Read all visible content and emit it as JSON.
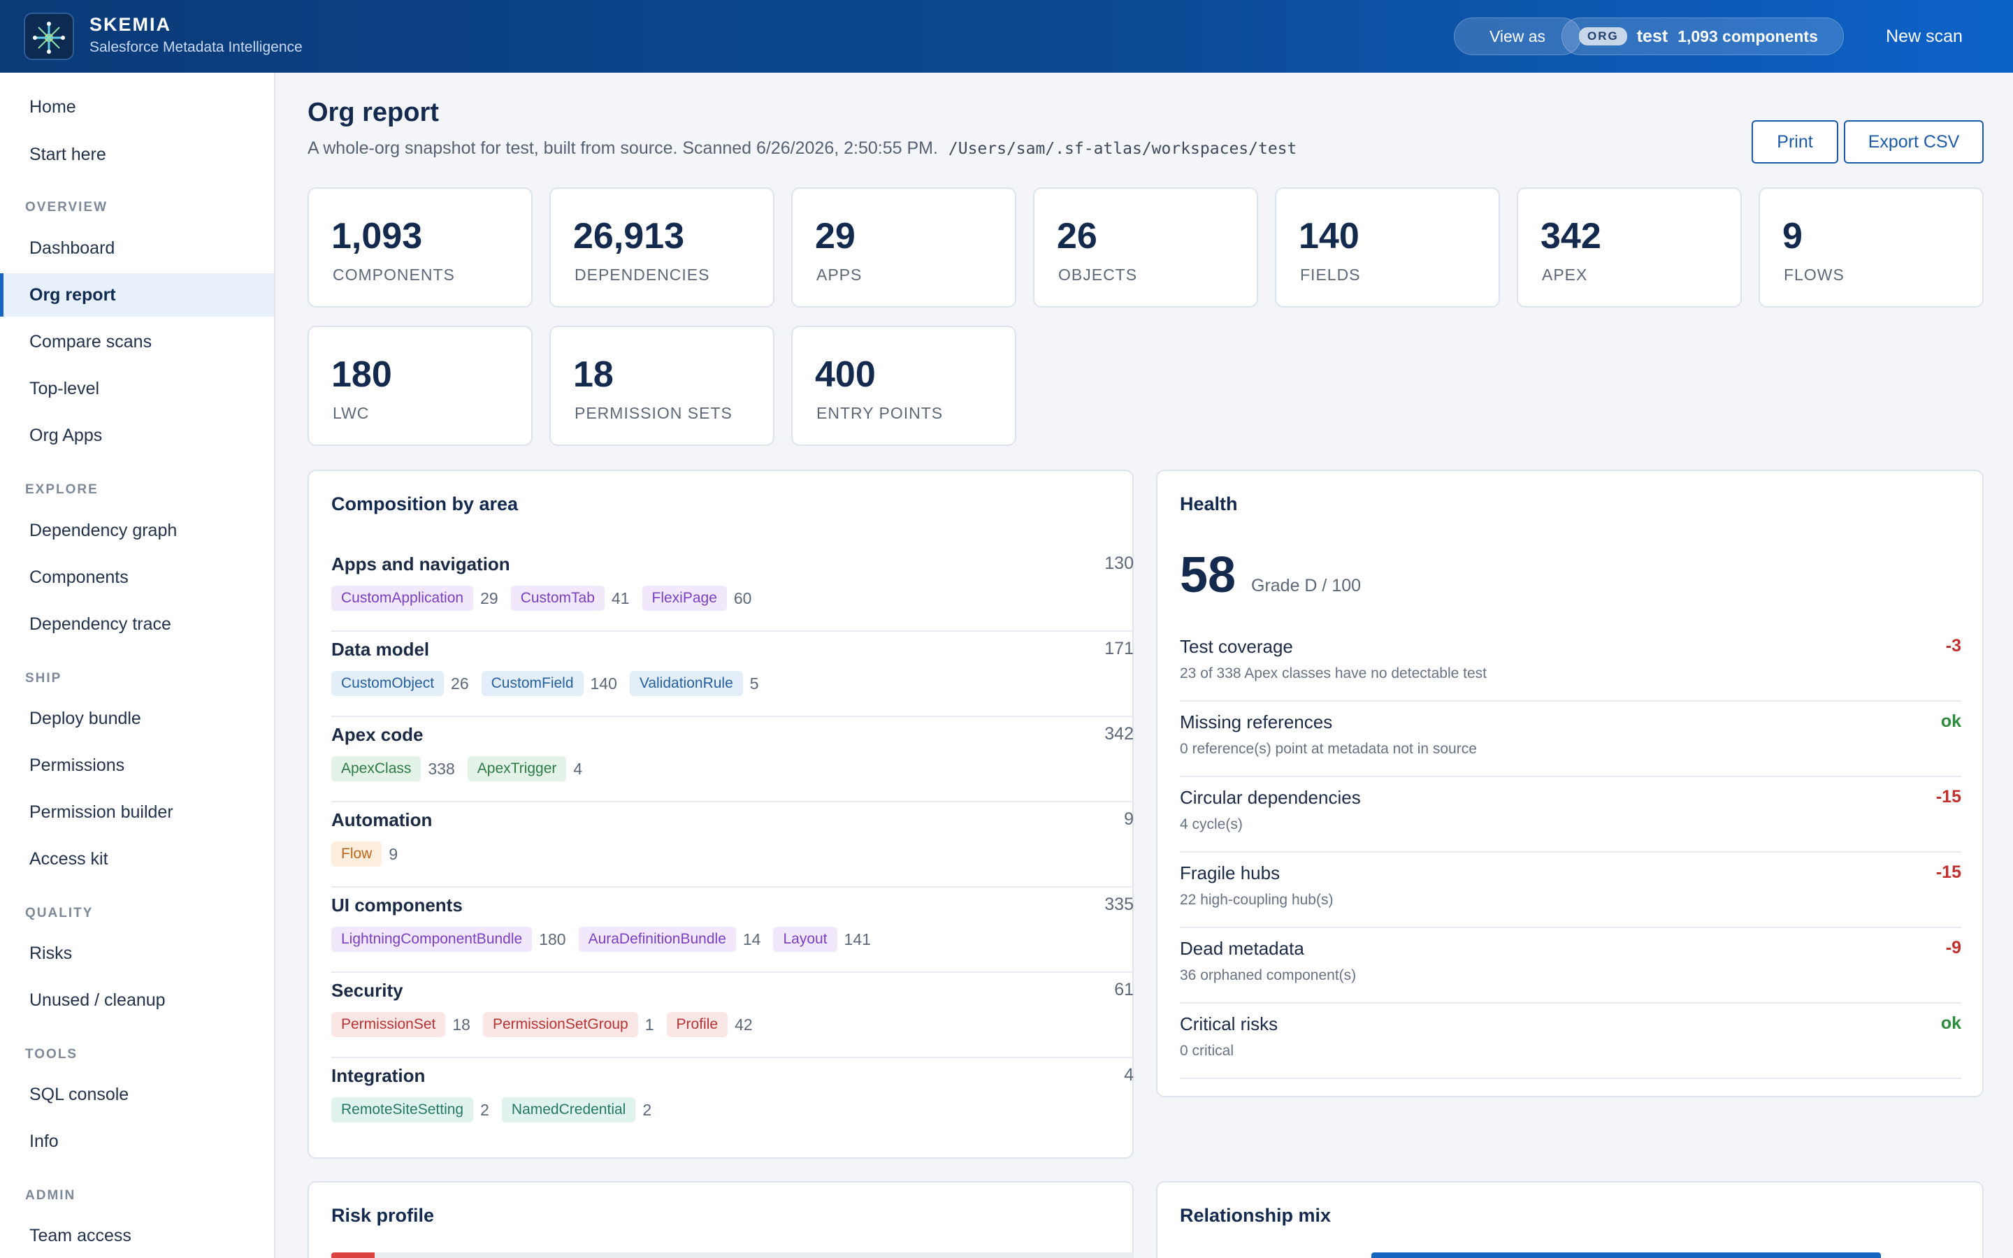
{
  "brand": {
    "name": "SKEMIA",
    "subtitle": "Salesforce Metadata Intelligence"
  },
  "header": {
    "view_as": "View as",
    "org_tag": "ORG",
    "org_name": "test",
    "org_components": "1,093 components",
    "new_scan": "New scan"
  },
  "sidebar": {
    "top": [
      "Home",
      "Start here"
    ],
    "sections": [
      {
        "title": "OVERVIEW",
        "items": [
          "Dashboard",
          "Org report",
          "Compare scans",
          "Top-level",
          "Org Apps"
        ]
      },
      {
        "title": "EXPLORE",
        "items": [
          "Dependency graph",
          "Components",
          "Dependency trace"
        ]
      },
      {
        "title": "SHIP",
        "items": [
          "Deploy bundle",
          "Permissions",
          "Permission builder",
          "Access kit"
        ]
      },
      {
        "title": "QUALITY",
        "items": [
          "Risks",
          "Unused / cleanup"
        ]
      },
      {
        "title": "TOOLS",
        "items": [
          "SQL console",
          "Info"
        ]
      },
      {
        "title": "ADMIN",
        "items": [
          "Team access"
        ]
      }
    ],
    "active": "Org report"
  },
  "page": {
    "title": "Org report",
    "subtitle": "A whole-org snapshot for test, built from source. Scanned 6/26/2026, 2:50:55 PM.",
    "path": "/Users/sam/.sf-atlas/workspaces/test",
    "print": "Print",
    "export": "Export CSV"
  },
  "stats": [
    {
      "value": "1,093",
      "label": "COMPONENTS"
    },
    {
      "value": "26,913",
      "label": "DEPENDENCIES"
    },
    {
      "value": "29",
      "label": "APPS"
    },
    {
      "value": "26",
      "label": "OBJECTS"
    },
    {
      "value": "140",
      "label": "FIELDS"
    },
    {
      "value": "342",
      "label": "APEX"
    },
    {
      "value": "9",
      "label": "FLOWS"
    },
    {
      "value": "180",
      "label": "LWC"
    },
    {
      "value": "18",
      "label": "PERMISSION SETS"
    },
    {
      "value": "400",
      "label": "ENTRY POINTS"
    }
  ],
  "composition": {
    "title": "Composition by area",
    "areas": [
      {
        "name": "Apps and navigation",
        "total": "130",
        "chips": [
          {
            "label": "CustomApplication",
            "count": "29",
            "color": "#7a3fc2"
          },
          {
            "label": "CustomTab",
            "count": "41",
            "color": "#7a3fc2"
          },
          {
            "label": "FlexiPage",
            "count": "60",
            "color": "#7a3fc2"
          }
        ]
      },
      {
        "name": "Data model",
        "total": "171",
        "chips": [
          {
            "label": "CustomObject",
            "count": "26",
            "color": "#24609e"
          },
          {
            "label": "CustomField",
            "count": "140",
            "color": "#24609e"
          },
          {
            "label": "ValidationRule",
            "count": "5",
            "color": "#24609e"
          }
        ]
      },
      {
        "name": "Apex code",
        "total": "342",
        "chips": [
          {
            "label": "ApexClass",
            "count": "338",
            "color": "#2d7a45"
          },
          {
            "label": "ApexTrigger",
            "count": "4",
            "color": "#2d7a45"
          }
        ]
      },
      {
        "name": "Automation",
        "total": "9",
        "chips": [
          {
            "label": "Flow",
            "count": "9",
            "color": "#b9651c"
          }
        ]
      },
      {
        "name": "UI components",
        "total": "335",
        "chips": [
          {
            "label": "LightningComponentBundle",
            "count": "180",
            "color": "#7a3fc2"
          },
          {
            "label": "AuraDefinitionBundle",
            "count": "14",
            "color": "#7a3fc2"
          },
          {
            "label": "Layout",
            "count": "141",
            "color": "#7a3fc2"
          }
        ]
      },
      {
        "name": "Security",
        "total": "61",
        "chips": [
          {
            "label": "PermissionSet",
            "count": "18",
            "color": "#b53434"
          },
          {
            "label": "PermissionSetGroup",
            "count": "1",
            "color": "#b53434"
          },
          {
            "label": "Profile",
            "count": "42",
            "color": "#b53434"
          }
        ]
      },
      {
        "name": "Integration",
        "total": "4",
        "chips": [
          {
            "label": "RemoteSiteSetting",
            "count": "2",
            "color": "#257766"
          },
          {
            "label": "NamedCredential",
            "count": "2",
            "color": "#257766"
          }
        ]
      }
    ]
  },
  "health": {
    "title": "Health",
    "score": "58",
    "grade": "Grade D / 100",
    "rows": [
      {
        "name": "Test coverage",
        "desc": "23 of 338 Apex classes have no detectable test",
        "delta": "-3",
        "status": "neg"
      },
      {
        "name": "Missing references",
        "desc": "0 reference(s) point at metadata not in source",
        "delta": "ok",
        "status": "ok"
      },
      {
        "name": "Circular dependencies",
        "desc": "4 cycle(s)",
        "delta": "-15",
        "status": "neg"
      },
      {
        "name": "Fragile hubs",
        "desc": "22 high-coupling hub(s)",
        "delta": "-15",
        "status": "neg"
      },
      {
        "name": "Dead metadata",
        "desc": "36 orphaned component(s)",
        "delta": "-9",
        "status": "neg"
      },
      {
        "name": "Critical risks",
        "desc": "0 critical",
        "delta": "ok",
        "status": "ok"
      }
    ]
  },
  "risk_profile": {
    "title": "Risk profile",
    "high_fraction": 0.054
  },
  "relationship_mix": {
    "title": "Relationship mix",
    "fraction": 0.94
  },
  "colors": {
    "accent": "#1565c0",
    "header_start": "#0a3a78",
    "header_end": "#0d62c9",
    "negative": "#c0302d",
    "ok": "#2e8b3e"
  }
}
